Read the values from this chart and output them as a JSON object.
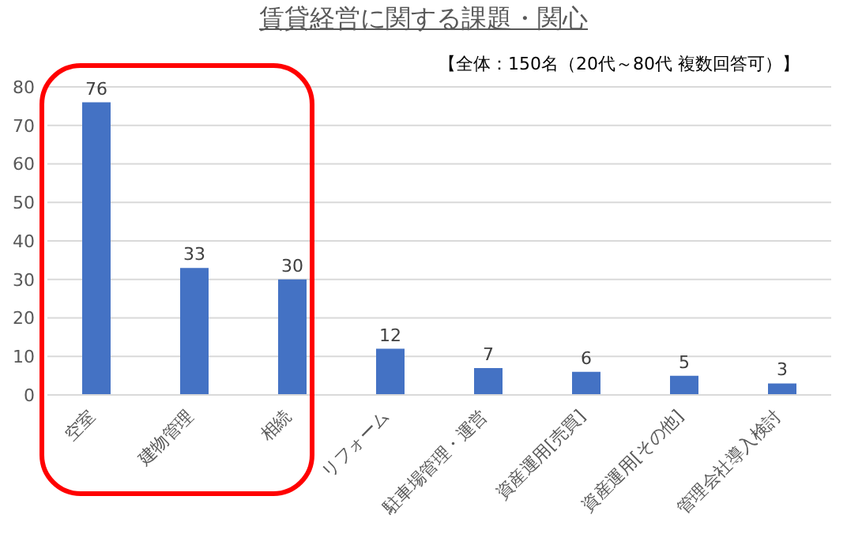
{
  "chart_data": {
    "type": "bar",
    "title": "賃貸経営に関する課題・関心",
    "annotations": [
      "【全体：150名（20代～80代 複数回答可）】"
    ],
    "categories": [
      "空室",
      "建物管理",
      "相続",
      "リフォーム",
      "駐車場管理・運営",
      "資産運用[売買]",
      "資産運用[その他]",
      "管理会社導入検討"
    ],
    "values": [
      76,
      33,
      30,
      12,
      7,
      6,
      5,
      3
    ],
    "color": "#4472c4",
    "ylim": [
      0,
      80
    ],
    "yticks": [
      0,
      10,
      20,
      30,
      40,
      50,
      60,
      70,
      80
    ],
    "grid": "y",
    "data_labels": true
  }
}
